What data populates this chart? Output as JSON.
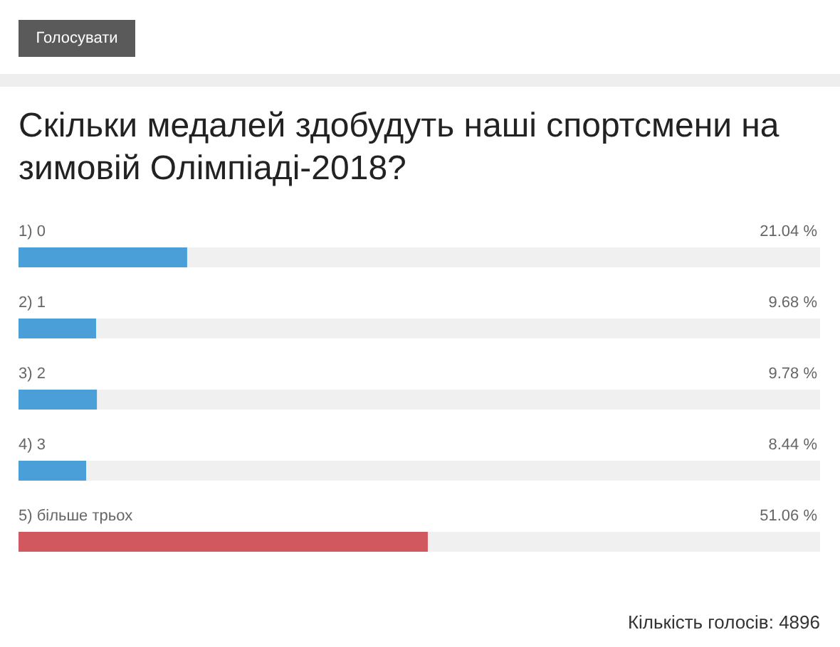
{
  "chart_data": {
    "type": "bar",
    "orientation": "horizontal",
    "title": "Скільки медалей здобудуть наші спортсмени на зимовій Олімпіаді-2018?",
    "categories": [
      "1) 0",
      "2) 1",
      "3) 2",
      "4) 3",
      "5) більше трьох"
    ],
    "values": [
      21.04,
      9.68,
      9.78,
      8.44,
      51.06
    ],
    "value_labels": [
      "21.04 %",
      "9.68 %",
      "9.78 %",
      "8.44 %",
      "51.06 %"
    ],
    "colors": [
      "#4a9fd9",
      "#4a9fd9",
      "#4a9fd9",
      "#4a9fd9",
      "#d2585f"
    ],
    "xlim": [
      0,
      100
    ],
    "annotations": [
      "Голосувати",
      "Кількість голосів: 4896"
    ]
  }
}
